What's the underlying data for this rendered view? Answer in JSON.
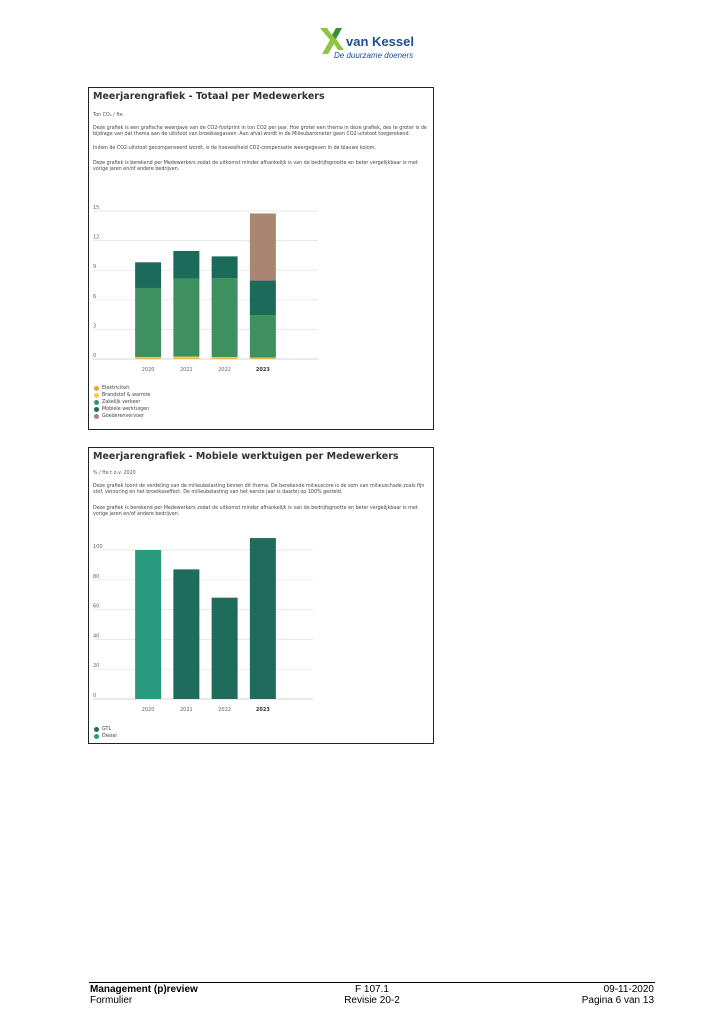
{
  "logo": {
    "brand": "van Kessel",
    "tagline": "De duurzame doeners"
  },
  "panel1": {
    "title": "Meerjarengrafiek - Totaal per Medewerkers",
    "unit": "Ton CO₂ / fte",
    "paragraphs": [
      "Deze grafiek is een grafische weergave van de CO2-footprint in ton CO2 per jaar. Hoe groter een thema in deze grafiek, des te groter is de bijdrage van dat thema aan de uitstoot van broeikasgassen. Aan afval wordt in de Milieubarometer geen CO2-uitstoot toegerekend.",
      "Indien de CO2-uitstoot gecompenseerd wordt, is de hoeveelheid CO2-compensatie weergegeven in de blauwe kolom.",
      "Deze grafiek is berekend per Medewerkers zodat de uitkomst minder afhankelijk is van de bedrijfsgrootte en beter vergelijkbaar is met vorige jaren en/of andere bedrijven."
    ]
  },
  "panel2": {
    "title": "Meerjarengrafiek - Mobiele werktuigen per Medewerkers",
    "unit": "% / fte t.o.v. 2020",
    "paragraphs": [
      "Deze grafiek toont de verdeling van de milieubelasting binnen dit thema. De berekende milieuscore is de som van milieuschade zoals fijn stof, verzuring en het broeikaseffect. De milieubelasting van het eerste jaar is daarbij op 100% gesteld.",
      "Deze grafiek is berekend per Medewerkers zodat de uitkomst minder afhankelijk is van de bedrijfsgrootte en beter vergelijkbaar is met vorige jaren en/of andere bedrijven."
    ]
  },
  "chart_data": [
    {
      "type": "bar",
      "stacked": true,
      "title": "Meerjarengrafiek - Totaal per Medewerkers",
      "ylabel": "Ton CO₂ / fte",
      "categories": [
        "2020",
        "2021",
        "2022",
        "2023"
      ],
      "highlight_category": "2023",
      "ylim": [
        0,
        15
      ],
      "yticks": [
        0,
        3,
        6,
        9,
        12,
        15
      ],
      "grid": true,
      "legend_position": "bottom-left",
      "series": [
        {
          "name": "Elektriciteit",
          "color": "#f0a13c",
          "values": [
            0.05,
            0.05,
            0.05,
            0.05
          ]
        },
        {
          "name": "Brandstof & warmte",
          "color": "#f1cd4f",
          "values": [
            0.15,
            0.2,
            0.15,
            0.1
          ]
        },
        {
          "name": "Zakelijk verkeer",
          "color": "#3f9060",
          "values": [
            7.0,
            7.9,
            8.0,
            4.3
          ]
        },
        {
          "name": "Mobiele werktuigen",
          "color": "#1c6b5a",
          "values": [
            2.6,
            2.8,
            2.2,
            3.5
          ]
        },
        {
          "name": "Goederenvervoer",
          "color": "#aa8572",
          "values": [
            0,
            0,
            0,
            6.8
          ]
        }
      ]
    },
    {
      "type": "bar",
      "stacked": true,
      "title": "Meerjarengrafiek - Mobiele werktuigen per Medewerkers",
      "ylabel": "% / fte t.o.v. 2020",
      "categories": [
        "2020",
        "2021",
        "2022",
        "2023"
      ],
      "highlight_category": "2023",
      "ylim": [
        0,
        100
      ],
      "yticks": [
        0,
        20,
        40,
        60,
        80,
        100
      ],
      "grid": true,
      "legend_position": "bottom-left",
      "series": [
        {
          "name": "GTL",
          "color": "#1f6b5c",
          "values": [
            0,
            87,
            68,
            108
          ]
        },
        {
          "name": "Diesel",
          "color": "#2a9a7c",
          "values": [
            100,
            0,
            0,
            0
          ]
        }
      ]
    }
  ],
  "footer": {
    "left_bold": "Management (p)review",
    "left": "Formulier",
    "mid_top": "F 107.1",
    "mid_bottom": "Revisie 20-2",
    "right_top": "09-11-2020",
    "right_bottom": "Pagina 6 van 13"
  }
}
